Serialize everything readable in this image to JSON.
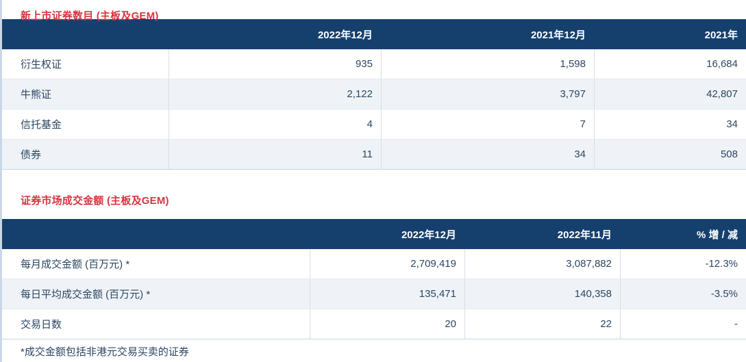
{
  "colors": {
    "header_bg": "#15406e",
    "alt_row_bg": "#eff3f8",
    "title_red": "#d7353f",
    "body_text": "#2b4560"
  },
  "tables": [
    {
      "title": "新上市证券数目 (主板及GEM)",
      "columns": [
        "2022年12月",
        "2021年12月",
        "2021年"
      ],
      "rows": [
        {
          "label": "衍生权证",
          "values": [
            "935",
            "1,598",
            "16,684"
          ]
        },
        {
          "label": "牛熊证",
          "values": [
            "2,122",
            "3,797",
            "42,807"
          ]
        },
        {
          "label": "信托基金",
          "values": [
            "4",
            "7",
            "34"
          ]
        },
        {
          "label": "债券",
          "values": [
            "11",
            "34",
            "508"
          ]
        }
      ]
    },
    {
      "title": "证券市场成交金额 (主板及GEM)",
      "columns": [
        "2022年12月",
        "2022年11月",
        "% 增 / 减"
      ],
      "rows": [
        {
          "label": "每月成交金额 (百万元) *",
          "values": [
            "2,709,419",
            "3,087,882",
            "-12.3%"
          ]
        },
        {
          "label": "每日平均成交金额 (百万元) *",
          "values": [
            "135,471",
            "140,358",
            "-3.5%"
          ]
        },
        {
          "label": "交易日数",
          "values": [
            "20",
            "22",
            "-"
          ]
        }
      ]
    }
  ],
  "footnote": "*成交金额包括非港元交易买卖的证券"
}
